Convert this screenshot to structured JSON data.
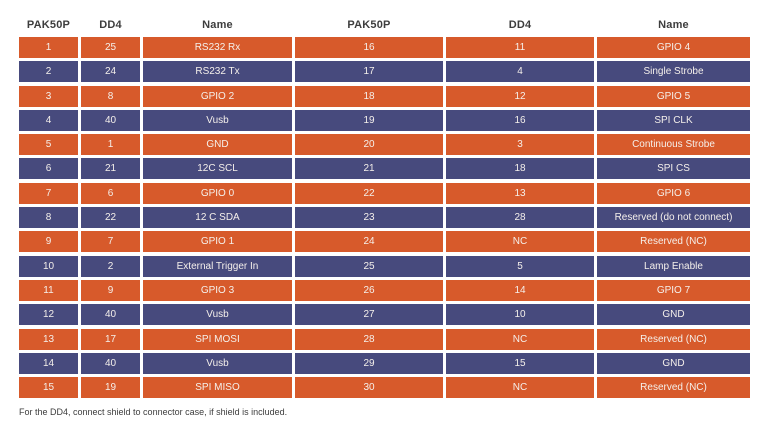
{
  "header": {
    "columns": [
      "PAK50P",
      "DD4",
      "Name",
      "PAK50P",
      "DD4",
      "Name"
    ]
  },
  "table": {
    "rows": [
      [
        "1",
        "25",
        "RS232 Rx",
        "16",
        "11",
        "GPIO 4"
      ],
      [
        "2",
        "24",
        "RS232 Tx",
        "17",
        "4",
        "Single Strobe"
      ],
      [
        "3",
        "8",
        "GPIO 2",
        "18",
        "12",
        "GPIO 5"
      ],
      [
        "4",
        "40",
        "Vusb",
        "19",
        "16",
        "SPI CLK"
      ],
      [
        "5",
        "1",
        "GND",
        "20",
        "3",
        "Continuous Strobe"
      ],
      [
        "6",
        "21",
        "12C SCL",
        "21",
        "18",
        "SPI CS"
      ],
      [
        "7",
        "6",
        "GPIO 0",
        "22",
        "13",
        "GPIO 6"
      ],
      [
        "8",
        "22",
        "12 C SDA",
        "23",
        "28",
        "Reserved (do not connect)"
      ],
      [
        "9",
        "7",
        "GPIO 1",
        "24",
        "NC",
        "Reserved (NC)"
      ],
      [
        "10",
        "2",
        "External Trigger In",
        "25",
        "5",
        "Lamp Enable"
      ],
      [
        "11",
        "9",
        "GPIO 3",
        "26",
        "14",
        "GPIO 7"
      ],
      [
        "12",
        "40",
        "Vusb",
        "27",
        "10",
        "GND"
      ],
      [
        "13",
        "17",
        "SPI MOSI",
        "28",
        "NC",
        "Reserved (NC)"
      ],
      [
        "14",
        "40",
        "Vusb",
        "29",
        "15",
        "GND"
      ],
      [
        "15",
        "19",
        "SPI MISO",
        "30",
        "NC",
        "Reserved (NC)"
      ]
    ]
  },
  "footer": {
    "note": "For the DD4, connect shield to connector case, if shield is included."
  },
  "colors": {
    "orange": "#D75A2B",
    "purple": "#474A7D",
    "cell_text": "#F5F0EB",
    "header_text": "#3D3D3D",
    "background": "#FFFFFF"
  }
}
